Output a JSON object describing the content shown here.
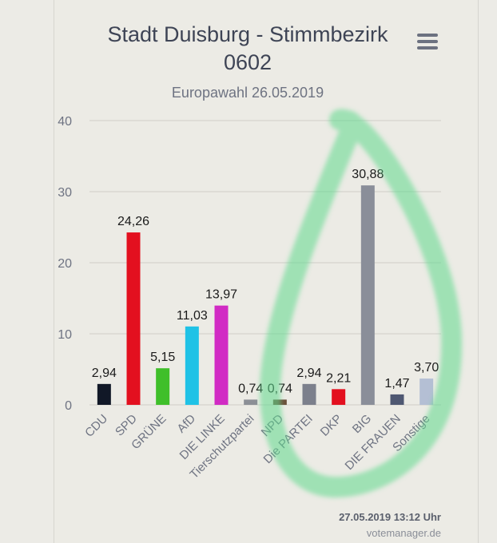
{
  "chart_data": {
    "type": "bar",
    "title_line1": "Stadt Duisburg - Stimmbezirk",
    "title_line2": "0602",
    "subtitle": "Europawahl 26.05.2019",
    "categories": [
      "CDU",
      "SPD",
      "GRÜNE",
      "AfD",
      "DIE LINKE",
      "Tierschutzpartei",
      "NPD",
      "Die PARTEI",
      "DKP",
      "BIG",
      "DIE FRAUEN",
      "Sonstige"
    ],
    "values": [
      2.94,
      24.26,
      5.15,
      11.03,
      13.97,
      0.74,
      0.74,
      2.94,
      2.21,
      30.88,
      1.47,
      3.7
    ],
    "value_labels": [
      "2,94",
      "24,26",
      "5,15",
      "11,03",
      "13,97",
      "0,74",
      "0,74",
      "2,94",
      "2,21",
      "30,88",
      "1,47",
      "3,70"
    ],
    "colors": [
      "#111827",
      "#e3101f",
      "#3fbf2a",
      "#1fc2e6",
      "#d12bc4",
      "#8c8f96",
      "#6b4f3a",
      "#7c808c",
      "#e3101f",
      "#8a8e99",
      "#4f5872",
      "#b4bfd4"
    ],
    "ylim": [
      0,
      40
    ],
    "yticks": [
      0,
      10,
      20,
      30,
      40
    ],
    "grid": true
  },
  "footer": {
    "timestamp": "27.05.2019 13:12 Uhr",
    "credit": "votemanager.de"
  },
  "icons": {
    "menu": "hamburger-menu-icon"
  }
}
